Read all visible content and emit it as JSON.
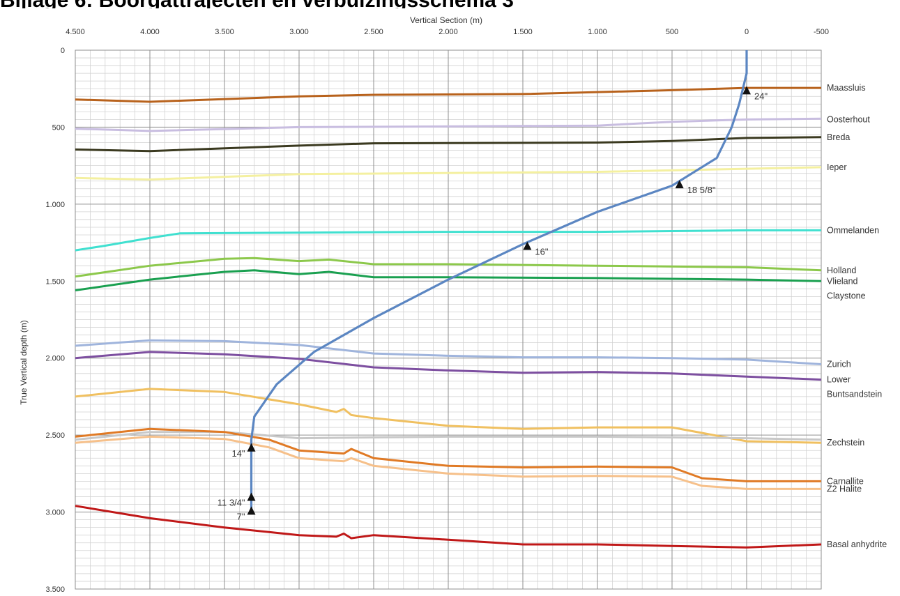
{
  "page": {
    "heading": "Bijlage 6: Boorgattrajecten en verbuizingsschema 3"
  },
  "chart_data": {
    "type": "line",
    "title": "",
    "xlabel": "Vertical Section (m)",
    "ylabel": "True Vertical depth (m)",
    "xlim": [
      4500,
      -500
    ],
    "ylim": [
      0,
      3500
    ],
    "x_reversed": true,
    "y_reversed": true,
    "x_axis_position": "top",
    "grid": true,
    "x_ticks": [
      4500,
      4000,
      3500,
      3000,
      2500,
      2000,
      1500,
      1000,
      500,
      0,
      -500
    ],
    "x_tick_labels": [
      "4.500",
      "4.000",
      "3.500",
      "3.000",
      "2.500",
      "2.000",
      "1.500",
      "1.000",
      "500",
      "0",
      "-500"
    ],
    "y_ticks": [
      0,
      500,
      1000,
      1500,
      2000,
      2500,
      3000,
      3500
    ],
    "y_tick_labels": [
      "0",
      "500",
      "1.000",
      "1.500",
      "2.000",
      "2.500",
      "3.000",
      "3.500"
    ],
    "layers": [
      {
        "label": "Maassluis",
        "color": "#b8621c",
        "label_depth": 245,
        "points": [
          [
            4500,
            320
          ],
          [
            4000,
            335
          ],
          [
            3000,
            300
          ],
          [
            2500,
            290
          ],
          [
            1500,
            285
          ],
          [
            500,
            260
          ],
          [
            0,
            245
          ],
          [
            -500,
            245
          ]
        ]
      },
      {
        "label": "Oosterhout",
        "color": "#c8bde0",
        "label_depth": 450,
        "points": [
          [
            4500,
            510
          ],
          [
            4000,
            525
          ],
          [
            3000,
            500
          ],
          [
            1000,
            490
          ],
          [
            500,
            465
          ],
          [
            0,
            450
          ],
          [
            -500,
            445
          ]
        ]
      },
      {
        "label": "Breda",
        "color": "#3b3a20",
        "label_depth": 565,
        "points": [
          [
            4500,
            645
          ],
          [
            4000,
            655
          ],
          [
            3000,
            620
          ],
          [
            2500,
            605
          ],
          [
            1000,
            600
          ],
          [
            500,
            590
          ],
          [
            0,
            570
          ],
          [
            -500,
            565
          ]
        ]
      },
      {
        "label": "Ieper",
        "color": "#f4f0a0",
        "label_depth": 760,
        "points": [
          [
            4500,
            830
          ],
          [
            4000,
            840
          ],
          [
            3000,
            805
          ],
          [
            1000,
            790
          ],
          [
            0,
            770
          ],
          [
            -500,
            760
          ]
        ]
      },
      {
        "label": "Ommelanden",
        "color": "#40e0d0",
        "label_depth": 1170,
        "points": [
          [
            4500,
            1300
          ],
          [
            4300,
            1270
          ],
          [
            4000,
            1220
          ],
          [
            3800,
            1190
          ],
          [
            3000,
            1185
          ],
          [
            2000,
            1180
          ],
          [
            1000,
            1180
          ],
          [
            500,
            1175
          ],
          [
            0,
            1170
          ],
          [
            -500,
            1170
          ]
        ]
      },
      {
        "label": "Holland",
        "color": "#8cc84b",
        "label_depth": 1430,
        "points": [
          [
            4500,
            1470
          ],
          [
            4000,
            1400
          ],
          [
            3500,
            1355
          ],
          [
            3300,
            1350
          ],
          [
            3000,
            1370
          ],
          [
            2800,
            1360
          ],
          [
            2500,
            1390
          ],
          [
            2000,
            1390
          ],
          [
            1000,
            1400
          ],
          [
            0,
            1410
          ],
          [
            -500,
            1430
          ]
        ]
      },
      {
        "label": "Vlieland Claystone",
        "color": "#1aa050",
        "label_depth": 1500,
        "points": [
          [
            4500,
            1560
          ],
          [
            4000,
            1490
          ],
          [
            3500,
            1440
          ],
          [
            3300,
            1430
          ],
          [
            3000,
            1455
          ],
          [
            2800,
            1440
          ],
          [
            2500,
            1475
          ],
          [
            2000,
            1475
          ],
          [
            1000,
            1480
          ],
          [
            0,
            1490
          ],
          [
            -500,
            1500
          ]
        ]
      },
      {
        "label": "Zurich",
        "color": "#9fb4dc",
        "label_depth": 2040,
        "points": [
          [
            4500,
            1920
          ],
          [
            4000,
            1885
          ],
          [
            3500,
            1890
          ],
          [
            3000,
            1915
          ],
          [
            2500,
            1970
          ],
          [
            2000,
            1985
          ],
          [
            1500,
            1995
          ],
          [
            1000,
            1995
          ],
          [
            500,
            2000
          ],
          [
            0,
            2010
          ],
          [
            -500,
            2040
          ]
        ]
      },
      {
        "label": "Lower Buntsandstein",
        "color": "#7d4fa0",
        "label_depth": 2140,
        "points": [
          [
            4500,
            2000
          ],
          [
            4000,
            1960
          ],
          [
            3500,
            1975
          ],
          [
            3000,
            2005
          ],
          [
            2500,
            2060
          ],
          [
            2000,
            2080
          ],
          [
            1500,
            2095
          ],
          [
            1000,
            2090
          ],
          [
            500,
            2100
          ],
          [
            0,
            2120
          ],
          [
            -500,
            2140
          ]
        ]
      },
      {
        "label": "Zechstein",
        "color": "#f0c060",
        "label_depth": 2550,
        "points": [
          [
            4500,
            2250
          ],
          [
            4000,
            2200
          ],
          [
            3500,
            2220
          ],
          [
            3000,
            2300
          ],
          [
            2750,
            2350
          ],
          [
            2700,
            2330
          ],
          [
            2650,
            2370
          ],
          [
            2500,
            2390
          ],
          [
            2000,
            2440
          ],
          [
            1500,
            2460
          ],
          [
            1000,
            2450
          ],
          [
            500,
            2450
          ],
          [
            0,
            2540
          ],
          [
            -500,
            2550
          ]
        ]
      },
      {
        "label": "Zechstein (lower)",
        "color": "#c8c8c8",
        "label_depth": 2530,
        "points": [
          [
            4500,
            2530
          ],
          [
            4000,
            2480
          ],
          [
            3500,
            2480
          ],
          [
            3000,
            2520
          ],
          [
            2000,
            2510
          ],
          [
            1000,
            2510
          ],
          [
            0,
            2520
          ],
          [
            -500,
            2530
          ]
        ]
      },
      {
        "label": "Carnallite",
        "color": "#e07a25",
        "label_depth": 2800,
        "points": [
          [
            4500,
            2510
          ],
          [
            4000,
            2460
          ],
          [
            3500,
            2480
          ],
          [
            3200,
            2530
          ],
          [
            3000,
            2600
          ],
          [
            2700,
            2620
          ],
          [
            2650,
            2590
          ],
          [
            2500,
            2650
          ],
          [
            2000,
            2700
          ],
          [
            1500,
            2710
          ],
          [
            1000,
            2705
          ],
          [
            500,
            2710
          ],
          [
            300,
            2780
          ],
          [
            0,
            2800
          ],
          [
            -500,
            2800
          ]
        ]
      },
      {
        "label": "Z2 Halite",
        "color": "#f6c08a",
        "label_depth": 2850,
        "points": [
          [
            4500,
            2550
          ],
          [
            4000,
            2510
          ],
          [
            3500,
            2525
          ],
          [
            3200,
            2580
          ],
          [
            3000,
            2650
          ],
          [
            2700,
            2670
          ],
          [
            2650,
            2650
          ],
          [
            2500,
            2700
          ],
          [
            2000,
            2750
          ],
          [
            1500,
            2770
          ],
          [
            1000,
            2765
          ],
          [
            500,
            2770
          ],
          [
            300,
            2830
          ],
          [
            0,
            2850
          ],
          [
            -500,
            2850
          ]
        ]
      },
      {
        "label": "Basal anhydrite",
        "color": "#c01818",
        "label_depth": 3210,
        "points": [
          [
            4500,
            2960
          ],
          [
            4000,
            3040
          ],
          [
            3500,
            3100
          ],
          [
            3000,
            3150
          ],
          [
            2750,
            3160
          ],
          [
            2700,
            3140
          ],
          [
            2650,
            3170
          ],
          [
            2500,
            3150
          ],
          [
            2000,
            3180
          ],
          [
            1500,
            3210
          ],
          [
            1000,
            3210
          ],
          [
            500,
            3220
          ],
          [
            0,
            3230
          ],
          [
            -500,
            3210
          ]
        ]
      }
    ],
    "well": {
      "color": "#5b86c2",
      "points": [
        [
          0,
          0
        ],
        [
          0,
          150
        ],
        [
          50,
          350
        ],
        [
          100,
          500
        ],
        [
          200,
          700
        ],
        [
          500,
          880
        ],
        [
          1000,
          1050
        ],
        [
          1500,
          1260
        ],
        [
          2000,
          1490
        ],
        [
          2500,
          1740
        ],
        [
          2900,
          1960
        ],
        [
          3150,
          2170
        ],
        [
          3300,
          2380
        ],
        [
          3320,
          2530
        ],
        [
          3320,
          3000
        ]
      ]
    },
    "casings": [
      {
        "label": "24\"",
        "vs": 0,
        "tvd": 260
      },
      {
        "label": "18 5/8\"",
        "vs": 450,
        "tvd": 870
      },
      {
        "label": "16\"",
        "vs": 1470,
        "tvd": 1270
      },
      {
        "label": "14\"",
        "vs": 3320,
        "tvd": 2580
      },
      {
        "label": "11 3/4\"",
        "vs": 3320,
        "tvd": 2900
      },
      {
        "label": "7\"",
        "vs": 3320,
        "tvd": 2990
      }
    ]
  }
}
